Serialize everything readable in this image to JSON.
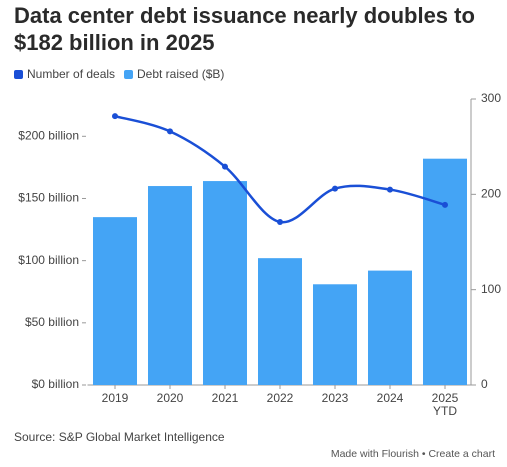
{
  "chart_data": {
    "type": "bar-line",
    "title": "Data center debt issuance nearly doubles to $182 billion in 2025",
    "categories": [
      "2019",
      "2020",
      "2021",
      "2022",
      "2023",
      "2024",
      "2025 YTD"
    ],
    "series": [
      {
        "name": "Number of deals",
        "color": "#1a4fd6",
        "type": "line",
        "axis": "y2",
        "values": [
          282,
          266,
          229,
          171,
          206,
          205,
          189
        ]
      },
      {
        "name": "Debt raised ($B)",
        "color": "#44a4f5",
        "type": "bar",
        "values": [
          135,
          160,
          164,
          102,
          81,
          92,
          182
        ]
      }
    ],
    "ylim": [
      0,
      230
    ],
    "yticks": [
      {
        "value": 0,
        "label": "$0 billion"
      },
      {
        "value": 50,
        "label": "$50 billion"
      },
      {
        "value": 100,
        "label": "$100 billion"
      },
      {
        "value": 150,
        "label": "$150 billion"
      },
      {
        "value": 200,
        "label": "$200 billion"
      }
    ],
    "y2lim": [
      0,
      300
    ],
    "y2ticks": [
      0,
      100,
      200,
      300
    ],
    "source": "Source: S&P Global Market Intelligence",
    "credit": "Made with Flourish • Create a chart"
  }
}
